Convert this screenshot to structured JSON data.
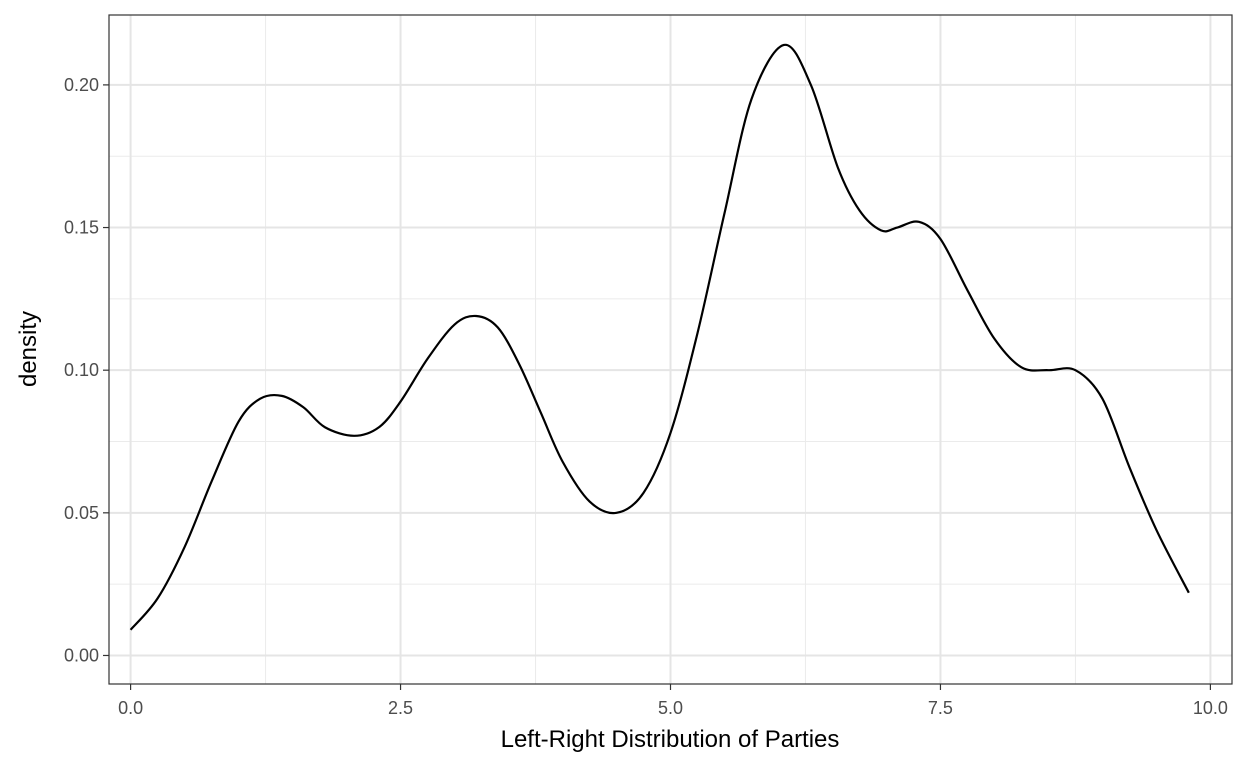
{
  "chart_data": {
    "type": "line",
    "title": "",
    "xlabel": "Left-Right Distribution of Parties",
    "ylabel": "density",
    "xlim": [
      -0.2,
      10.2
    ],
    "ylim": [
      -0.01,
      0.2245
    ],
    "x_ticks": [
      {
        "value": 0,
        "label": "0.0"
      },
      {
        "value": 2.5,
        "label": "2.5"
      },
      {
        "value": 5,
        "label": "5.0"
      },
      {
        "value": 7.5,
        "label": "7.5"
      },
      {
        "value": 10,
        "label": "10.0"
      }
    ],
    "y_ticks": [
      {
        "value": 0,
        "label": "0.00"
      },
      {
        "value": 0.05,
        "label": "0.05"
      },
      {
        "value": 0.1,
        "label": "0.10"
      },
      {
        "value": 0.15,
        "label": "0.15"
      },
      {
        "value": 0.2,
        "label": "0.20"
      }
    ],
    "x_minor": [
      1.25,
      3.75,
      6.25,
      8.75
    ],
    "y_minor": [
      0.025,
      0.075,
      0.125,
      0.175
    ],
    "grid": true,
    "legend": "none",
    "line_color": "#000000",
    "series": [
      {
        "x": [
          0.0,
          0.25,
          0.5,
          0.75,
          1.0,
          1.2,
          1.4,
          1.6,
          1.8,
          2.07,
          2.3,
          2.5,
          2.75,
          3.0,
          3.2,
          3.4,
          3.6,
          3.8,
          4.0,
          4.25,
          4.5,
          4.75,
          5.0,
          5.25,
          5.5,
          5.75,
          6.05,
          6.3,
          6.55,
          6.75,
          6.95,
          7.1,
          7.3,
          7.5,
          7.75,
          8.0,
          8.25,
          8.5,
          8.75,
          9.0,
          9.25,
          9.5,
          9.8
        ],
        "y": [
          0.009,
          0.02,
          0.038,
          0.061,
          0.082,
          0.09,
          0.091,
          0.087,
          0.08,
          0.077,
          0.08,
          0.089,
          0.104,
          0.116,
          0.119,
          0.115,
          0.102,
          0.085,
          0.068,
          0.054,
          0.05,
          0.057,
          0.078,
          0.113,
          0.155,
          0.195,
          0.214,
          0.2,
          0.171,
          0.156,
          0.149,
          0.15,
          0.152,
          0.146,
          0.128,
          0.111,
          0.101,
          0.1,
          0.1,
          0.09,
          0.066,
          0.044,
          0.022
        ]
      }
    ]
  }
}
